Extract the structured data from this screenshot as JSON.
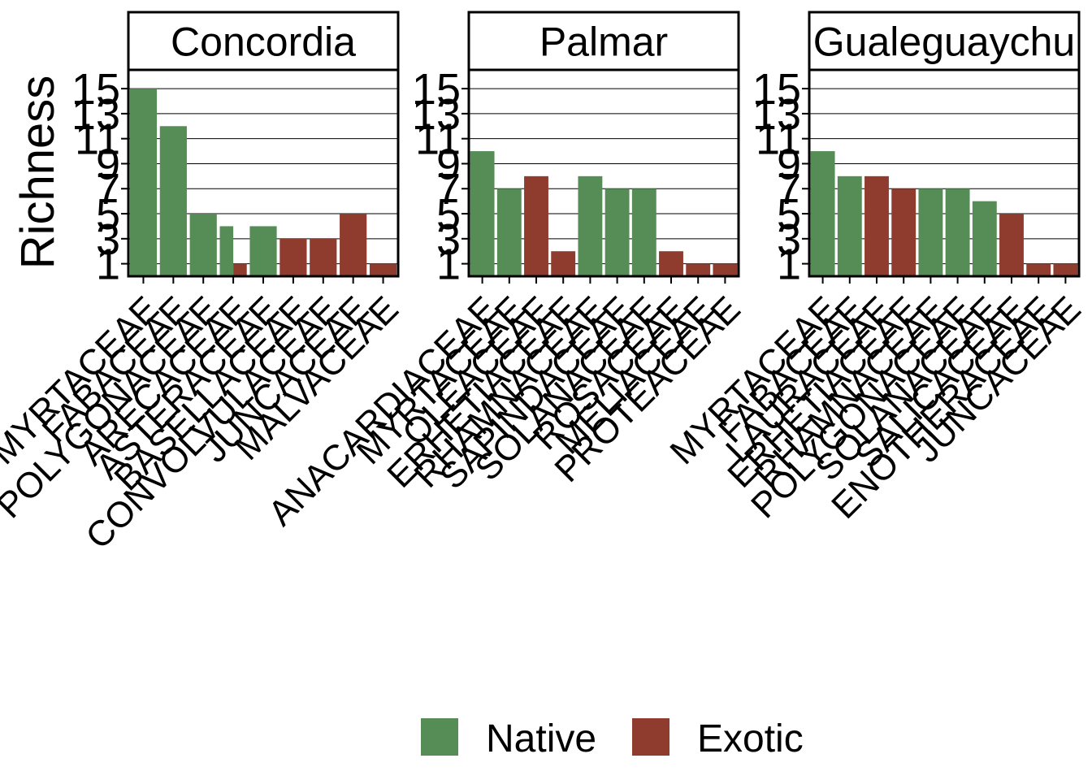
{
  "chart_data": {
    "type": "bar",
    "ylabel": "Richness",
    "y_ticks": [
      1,
      3,
      5,
      7,
      9,
      11,
      13,
      15
    ],
    "ylim": [
      0,
      16.5
    ],
    "grid": true,
    "legend": {
      "position": "bottom",
      "entries": [
        {
          "name": "Native",
          "color": "#568c56"
        },
        {
          "name": "Exotic",
          "color": "#8f3c2f"
        }
      ]
    },
    "panels": [
      {
        "title": "Concordia",
        "categories": [
          "MYRTACEAE",
          "FABACEAE",
          "POLYGONACEAE",
          "ARECACEAE",
          "ASTERACEAE",
          "BASELLACEAE",
          "CONVOLVULACEAE",
          "JUNCACEAE",
          "MALVACEAE"
        ],
        "bars": [
          {
            "category": 0,
            "status": "Native",
            "value": 15
          },
          {
            "category": 1,
            "status": "Native",
            "value": 12
          },
          {
            "category": 2,
            "status": "Native",
            "value": 5
          },
          {
            "category": 3,
            "status": "Native",
            "value": 4
          },
          {
            "category": 3,
            "status": "Exotic",
            "value": 1
          },
          {
            "category": 4,
            "status": "Native",
            "value": 4
          },
          {
            "category": 5,
            "status": "Exotic",
            "value": 3
          },
          {
            "category": 6,
            "status": "Exotic",
            "value": 3
          },
          {
            "category": 7,
            "status": "Exotic",
            "value": 5
          },
          {
            "category": 8,
            "status": "Exotic",
            "value": 1
          }
        ]
      },
      {
        "title": "Palmar",
        "categories": [
          "ANACARDIACEAE",
          "MYRTACEAE",
          "OLEACEAE",
          "ERHETIACEAE",
          "RHAMNACEAE",
          "SAPINDACEAE",
          "SOLANACEAE",
          "ROSACEAE",
          "MELIACEAE",
          "PROTEACEAE"
        ],
        "bars": [
          {
            "category": 0,
            "status": "Native",
            "value": 10
          },
          {
            "category": 1,
            "status": "Native",
            "value": 7
          },
          {
            "category": 2,
            "status": "Exotic",
            "value": 8
          },
          {
            "category": 3,
            "status": "Exotic",
            "value": 2
          },
          {
            "category": 4,
            "status": "Native",
            "value": 8
          },
          {
            "category": 5,
            "status": "Native",
            "value": 7
          },
          {
            "category": 6,
            "status": "Native",
            "value": 7
          },
          {
            "category": 7,
            "status": "Exotic",
            "value": 2
          },
          {
            "category": 8,
            "status": "Exotic",
            "value": 1
          },
          {
            "category": 9,
            "status": "Exotic",
            "value": 1
          }
        ]
      },
      {
        "title": "Gualeguaychu",
        "categories": [
          "MYRTACEAE",
          "FABACEAE",
          "LAURACEAE",
          "ERHETIACEAE",
          "RHAMNACEAE",
          "POLYGONACEAE",
          "SOLANACEAE",
          "SALICACEAE",
          "ENOTHERACEAE",
          "JUNCACEAE"
        ],
        "bars": [
          {
            "category": 0,
            "status": "Native",
            "value": 10
          },
          {
            "category": 1,
            "status": "Native",
            "value": 8
          },
          {
            "category": 2,
            "status": "Exotic",
            "value": 8
          },
          {
            "category": 3,
            "status": "Exotic",
            "value": 7
          },
          {
            "category": 4,
            "status": "Native",
            "value": 7
          },
          {
            "category": 5,
            "status": "Native",
            "value": 7
          },
          {
            "category": 6,
            "status": "Native",
            "value": 6
          },
          {
            "category": 7,
            "status": "Exotic",
            "value": 5
          },
          {
            "category": 8,
            "status": "Exotic",
            "value": 1
          },
          {
            "category": 9,
            "status": "Exotic",
            "value": 1
          }
        ]
      }
    ]
  }
}
